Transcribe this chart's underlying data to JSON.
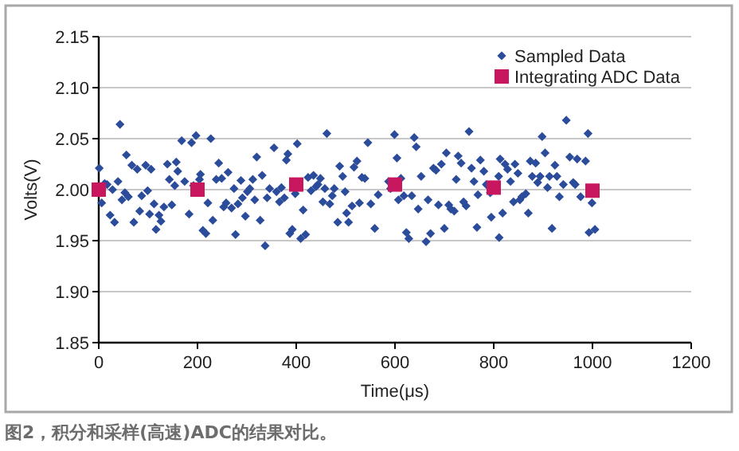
{
  "chart_data": {
    "type": "scatter",
    "xlabel": "Time(μs)",
    "ylabel": "Volts(V)",
    "annotations": [
      "图2，积分和采样(高速)ADC的结果对比。"
    ],
    "xlim": [
      0,
      1200
    ],
    "ylim": [
      1.85,
      2.15
    ],
    "xticks": [
      0,
      200,
      400,
      600,
      800,
      1000,
      1200
    ],
    "yticks": [
      {
        "value": 1.85,
        "label": "1.85"
      },
      {
        "value": 1.9,
        "label": "1.90"
      },
      {
        "value": 1.95,
        "label": "1.95"
      },
      {
        "value": 2.0,
        "label": "2.00"
      },
      {
        "value": 2.05,
        "label": "2.05"
      },
      {
        "value": 2.1,
        "label": "2.10"
      },
      {
        "value": 2.15,
        "label": "2.15"
      }
    ],
    "grid": "y",
    "legend": "top right",
    "series": [
      {
        "name": "Sampled Data",
        "color": "#2b4c9a",
        "marker": "diamond",
        "x": [
          1,
          6,
          12,
          17,
          23,
          28,
          32,
          39,
          43,
          47,
          53,
          56,
          60,
          67,
          71,
          78,
          83,
          87,
          95,
          99,
          103,
          106,
          112,
          116,
          122,
          126,
          132,
          139,
          143,
          148,
          154,
          157,
          160,
          168,
          174,
          183,
          188,
          192,
          197,
          204,
          206,
          211,
          217,
          221,
          227,
          231,
          238,
          243,
          249,
          253,
          258,
          262,
          269,
          274,
          277,
          282,
          288,
          291,
          297,
          301,
          306,
          312,
          316,
          320,
          327,
          331,
          337,
          341,
          346,
          355,
          360,
          366,
          370,
          376,
          380,
          383,
          387,
          392,
          398,
          402,
          409,
          414,
          419,
          424,
          430,
          435,
          440,
          444,
          449,
          454,
          458,
          462,
          468,
          473,
          477,
          484,
          488,
          494,
          499,
          502,
          506,
          513,
          517,
          523,
          528,
          533,
          539,
          545,
          551,
          559,
          566,
          587,
          591,
          599,
          604,
          607,
          612,
          618,
          623,
          628,
          634,
          639,
          643,
          647,
          653,
          663,
          667,
          672,
          678,
          683,
          688,
          694,
          700,
          704,
          709,
          713,
          720,
          724,
          728,
          734,
          739,
          744,
          750,
          755,
          760,
          766,
          768,
          773,
          780,
          785,
          793,
          795,
          810,
          811,
          813,
          818,
          823,
          828,
          834,
          840,
          843,
          849,
          853,
          857,
          865,
          870,
          874,
          878,
          885,
          889,
          894,
          898,
          904,
          909,
          913,
          918,
          924,
          928,
          933,
          941,
          947,
          954,
          961,
          965,
          969,
          976,
          986,
          991,
          993,
          999,
          1005
        ],
        "values": [
          2.021,
          1.987,
          2.006,
          2.005,
          1.975,
          2.0,
          1.968,
          2.008,
          2.064,
          1.99,
          1.997,
          2.034,
          1.993,
          2.024,
          1.968,
          2.02,
          1.979,
          1.994,
          2.024,
          1.999,
          1.976,
          2.02,
          1.986,
          1.961,
          1.975,
          1.969,
          1.983,
          2.025,
          2.01,
          1.985,
          2.004,
          2.027,
          2.018,
          2.048,
          2.008,
          1.976,
          2.046,
          2.004,
          2.053,
          2.01,
          2.015,
          1.96,
          1.957,
          1.987,
          2.05,
          1.97,
          2.01,
          2.026,
          2.011,
          1.983,
          1.987,
          2.017,
          1.982,
          2.001,
          1.956,
          1.986,
          2.009,
          1.992,
          1.974,
          1.998,
          2.001,
          2.01,
          1.99,
          2.032,
          1.97,
          2.014,
          1.945,
          1.992,
          2.001,
          2.041,
          1.998,
          1.988,
          2.002,
          1.992,
          2.029,
          2.035,
          1.957,
          1.961,
          1.996,
          2.045,
          1.952,
          1.98,
          1.956,
          2.012,
          1.999,
          2.014,
          2.003,
          2.005,
          2.011,
          1.988,
          2.001,
          2.055,
          1.986,
          1.994,
          2.001,
          1.968,
          2.023,
          2.013,
          1.998,
          1.977,
          1.968,
          1.984,
          2.022,
          2.028,
          1.987,
          2.012,
          2.011,
          2.046,
          1.986,
          1.962,
          1.995,
          2.008,
          2.001,
          2.054,
          2.031,
          1.99,
          2.011,
          1.994,
          1.958,
          1.952,
          1.994,
          2.051,
          2.042,
          1.981,
          2.013,
          1.949,
          1.99,
          1.957,
          2.021,
          2.019,
          1.985,
          2.025,
          1.962,
          2.036,
          1.985,
          1.981,
          1.979,
          2.01,
          2.033,
          2.026,
          1.988,
          1.984,
          2.057,
          2.021,
          2.008,
          1.963,
          1.995,
          2.029,
          2.018,
          2.005,
          1.997,
          1.973,
          2.013,
          1.953,
          2.03,
          1.977,
          2.025,
          2.02,
          2.008,
          1.988,
          2.025,
          2.016,
          1.99,
          1.993,
          1.996,
          1.977,
          2.028,
          2.013,
          2.026,
          2.007,
          2.013,
          2.052,
          2.036,
          2.002,
          2.013,
          1.962,
          2.024,
          2.013,
          1.993,
          2.005,
          2.068,
          2.032,
          2.007,
          2.005,
          2.03,
          1.993,
          2.028,
          2.055,
          1.958,
          1.987,
          1.961
        ]
      },
      {
        "name": "Integrating ADC Data",
        "color": "#c8175e",
        "marker": "square",
        "x": [
          0,
          200,
          400,
          600,
          800,
          1000
        ],
        "values": [
          2.0,
          2.0,
          2.005,
          2.005,
          2.002,
          1.999
        ]
      }
    ]
  }
}
